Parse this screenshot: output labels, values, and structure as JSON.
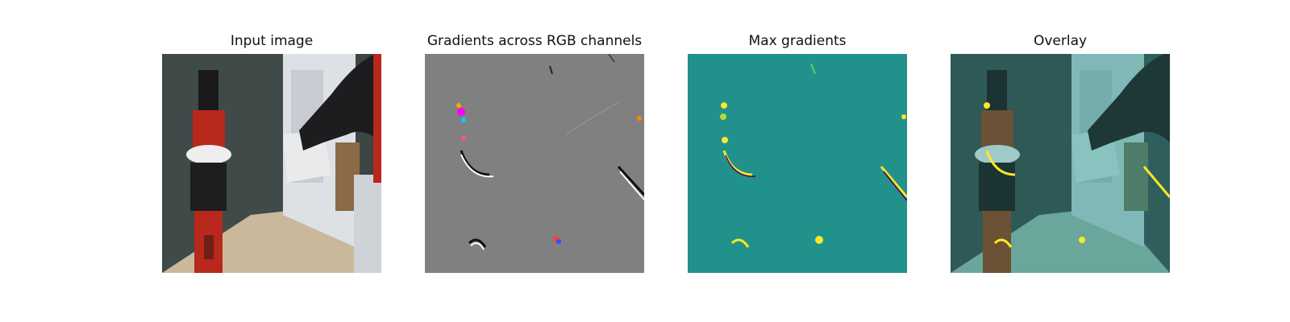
{
  "figure": {
    "panels": [
      {
        "title": "Input image",
        "image": "robot-arm-in-office-photo"
      },
      {
        "title": "Gradients across RGB channels",
        "image": "rgb-gradient-saliency-map"
      },
      {
        "title": "Max gradients",
        "image": "max-gradient-heatmap"
      },
      {
        "title": "Overlay",
        "image": "gradient-overlay-on-photo"
      }
    ],
    "colors": {
      "gradient_background": "#808080",
      "heatmap_background": "#21918c",
      "heatmap_high": "#fde725",
      "overlay_tint": "#2a8a87",
      "robot_red": "#b8281c"
    }
  }
}
